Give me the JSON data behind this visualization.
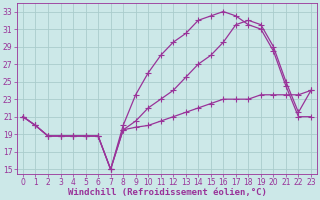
{
  "background_color": "#cce8e8",
  "grid_color": "#aacccc",
  "line_color": "#993399",
  "xlim": [
    -0.5,
    23.5
  ],
  "ylim": [
    14.5,
    34
  ],
  "xticks": [
    0,
    1,
    2,
    3,
    4,
    5,
    6,
    7,
    8,
    9,
    10,
    11,
    12,
    13,
    14,
    15,
    16,
    17,
    18,
    19,
    20,
    21,
    22,
    23
  ],
  "yticks": [
    15,
    17,
    19,
    21,
    23,
    25,
    27,
    29,
    31,
    33
  ],
  "xlabel": "Windchill (Refroidissement éolien,°C)",
  "curve1_x": [
    0,
    1,
    2,
    3,
    4,
    5,
    6,
    7,
    8,
    9,
    10,
    11,
    12,
    13,
    14,
    15,
    16,
    17,
    18,
    19,
    20,
    21,
    22,
    23
  ],
  "curve1_y": [
    21,
    20.0,
    18.8,
    18.8,
    18.8,
    18.8,
    18.8,
    15,
    20,
    23.5,
    26,
    28,
    29.5,
    30.5,
    32,
    32.5,
    33,
    32.5,
    31.5,
    31,
    28.5,
    24.5,
    21,
    21
  ],
  "curve2_x": [
    0,
    1,
    2,
    3,
    4,
    5,
    6,
    7,
    8,
    9,
    10,
    11,
    12,
    13,
    14,
    15,
    16,
    17,
    18,
    19,
    20,
    21,
    22,
    23
  ],
  "curve2_y": [
    21,
    20,
    18.8,
    18.8,
    18.8,
    18.8,
    18.8,
    15,
    19.5,
    20.5,
    22,
    23,
    24,
    25.5,
    27,
    28,
    29.5,
    31.5,
    32,
    31.5,
    29,
    25,
    21.5,
    24
  ],
  "curve3_x": [
    0,
    1,
    2,
    3,
    4,
    5,
    6,
    7,
    8,
    9,
    10,
    11,
    12,
    13,
    14,
    15,
    16,
    17,
    18,
    19,
    20,
    21,
    22,
    23
  ],
  "curve3_y": [
    21,
    20,
    18.8,
    18.8,
    18.8,
    18.8,
    18.8,
    15,
    19.5,
    19.8,
    20,
    20.5,
    21,
    21.5,
    22,
    22.5,
    23,
    23,
    23,
    23.5,
    23.5,
    23.5,
    23.5,
    24
  ],
  "marker": "P",
  "markersize": 2.5,
  "linewidth": 0.9,
  "tick_fontsize": 5.5,
  "xlabel_fontsize": 6.5
}
